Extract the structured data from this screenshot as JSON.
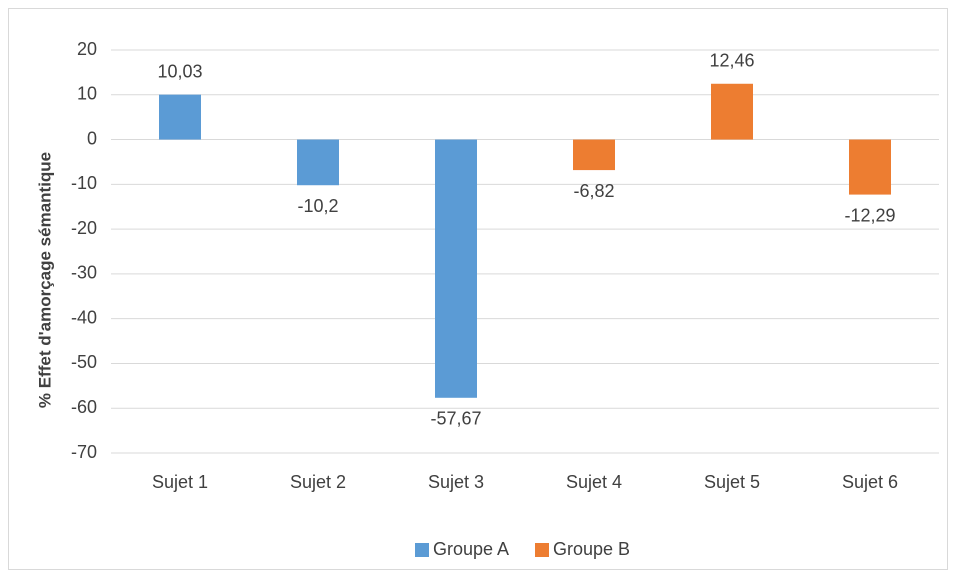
{
  "chart_data": {
    "type": "bar",
    "y_label": "% Effet d'amorçage sémantique",
    "categories": [
      "Sujet 1",
      "Sujet 2",
      "Sujet 3",
      "Sujet 4",
      "Sujet 5",
      "Sujet 6"
    ],
    "series": [
      {
        "name": "Groupe A",
        "color": "#5b9bd5",
        "values": [
          10.03,
          -10.2,
          -57.67,
          null,
          null,
          null
        ],
        "value_labels": [
          "10,03",
          "-10,2",
          "-57,67",
          null,
          null,
          null
        ]
      },
      {
        "name": "Groupe B",
        "color": "#ed7d31",
        "values": [
          null,
          null,
          null,
          -6.82,
          12.46,
          -12.29
        ],
        "value_labels": [
          null,
          null,
          null,
          "-6,82",
          "12,46",
          "-12,29"
        ]
      }
    ],
    "ylim": [
      -70,
      20
    ],
    "yticks": [
      -70,
      -60,
      -50,
      -40,
      -30,
      -20,
      -10,
      0,
      10,
      20
    ],
    "grid": true,
    "legend": "bottom"
  }
}
